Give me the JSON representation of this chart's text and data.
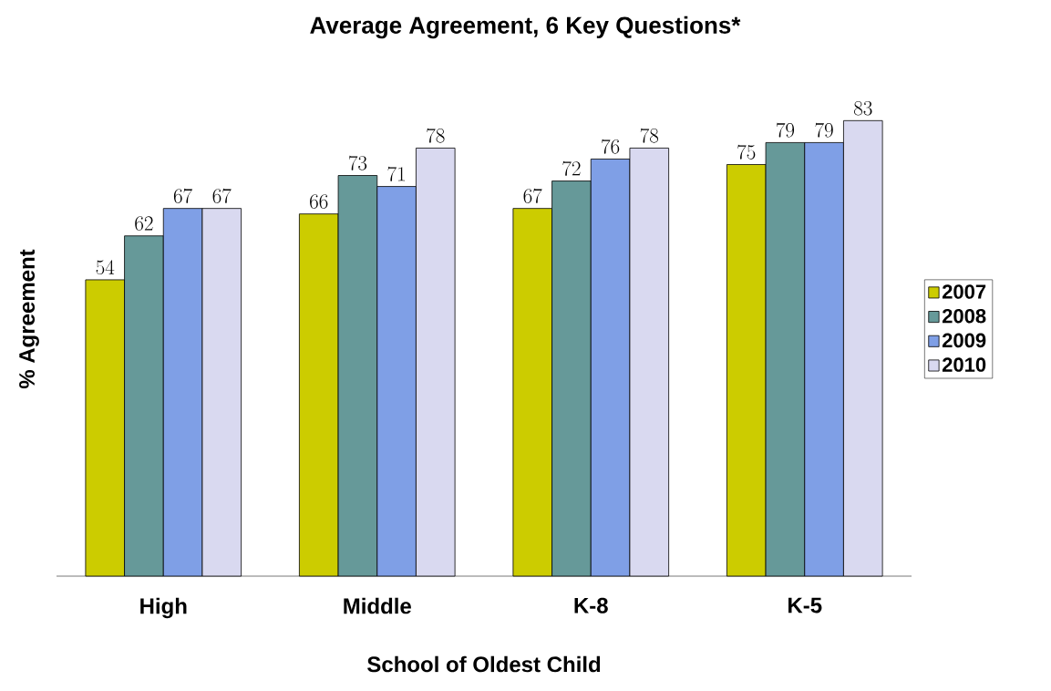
{
  "chart_data": {
    "type": "bar",
    "title": "Average Agreement, 6 Key Questions*",
    "xlabel": "School of Oldest Child",
    "ylabel": "% Agreement",
    "categories": [
      "High",
      "Middle",
      "K-8",
      "K-5"
    ],
    "series": [
      {
        "name": "2007",
        "color": "#cccc00",
        "values": [
          54,
          66,
          67,
          75
        ]
      },
      {
        "name": "2008",
        "color": "#669999",
        "values": [
          62,
          73,
          72,
          79
        ]
      },
      {
        "name": "2009",
        "color": "#7f9fe6",
        "values": [
          67,
          71,
          76,
          79
        ]
      },
      {
        "name": "2010",
        "color": "#d9d9f0",
        "values": [
          67,
          78,
          78,
          83
        ]
      }
    ],
    "data_labels": true,
    "legend": "right"
  }
}
